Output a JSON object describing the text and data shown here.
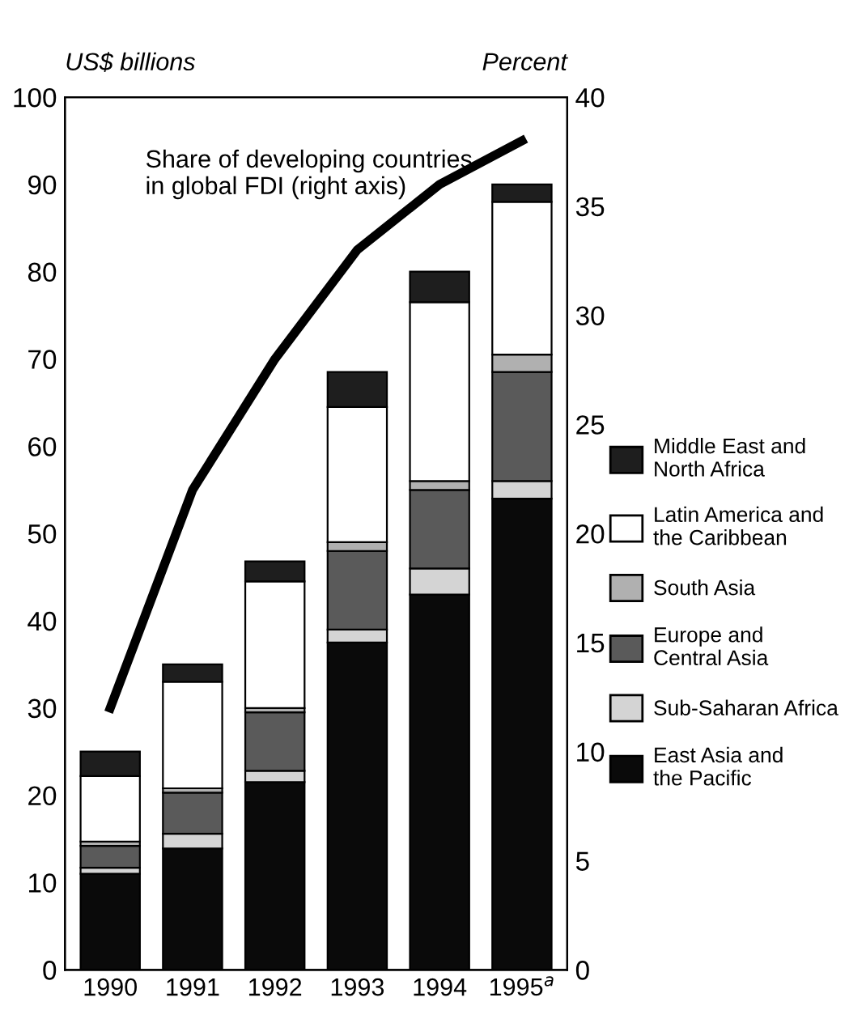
{
  "chart_data": {
    "type": "bar",
    "stacked": true,
    "categories": [
      "1990",
      "1991",
      "1992",
      "1993",
      "1994",
      "1995$^{a}$"
    ],
    "ylabel": "US$ billions",
    "y2label": "Percent",
    "ylim": [
      0,
      100
    ],
    "yticks": [
      0,
      10,
      20,
      30,
      40,
      50,
      60,
      70,
      80,
      90,
      100
    ],
    "y2lim": [
      0,
      40
    ],
    "y2ticks": [
      0,
      5,
      10,
      15,
      20,
      25,
      30,
      35,
      40
    ],
    "series": [
      {
        "name": "East Asia and\nthe Pacific",
        "color": "#0a0a0a",
        "values": [
          11,
          13.9,
          21.5,
          37.5,
          43,
          54
        ]
      },
      {
        "name": "Sub-Saharan Africa",
        "color": "#d4d4d4",
        "values": [
          0.7,
          1.7,
          1.3,
          1.5,
          3,
          2
        ]
      },
      {
        "name": "Europe and\nCentral Asia",
        "color": "#5a5a5a",
        "values": [
          2.5,
          4.7,
          6.7,
          9,
          9,
          12.5
        ]
      },
      {
        "name": "South Asia",
        "color": "#b0b0b0",
        "values": [
          0.5,
          0.5,
          0.5,
          1,
          1,
          2
        ]
      },
      {
        "name": "Latin America and\nthe Caribbean",
        "color": "#ffffff",
        "values": [
          7.5,
          12.2,
          14.5,
          15.5,
          20.5,
          17.5
        ]
      },
      {
        "name": "Middle East and\nNorth Africa",
        "color": "#1e1e1e",
        "values": [
          2.8,
          2,
          2.3,
          4,
          3.5,
          2
        ]
      },
      {
        "type": "line",
        "axis": "y2",
        "color": "#000000",
        "values": [
          12,
          22,
          28,
          33,
          36,
          38
        ]
      }
    ],
    "annotations": [
      "Share of developing countries\nin global FDI (right axis)"
    ],
    "legend": "right",
    "grid": false
  }
}
